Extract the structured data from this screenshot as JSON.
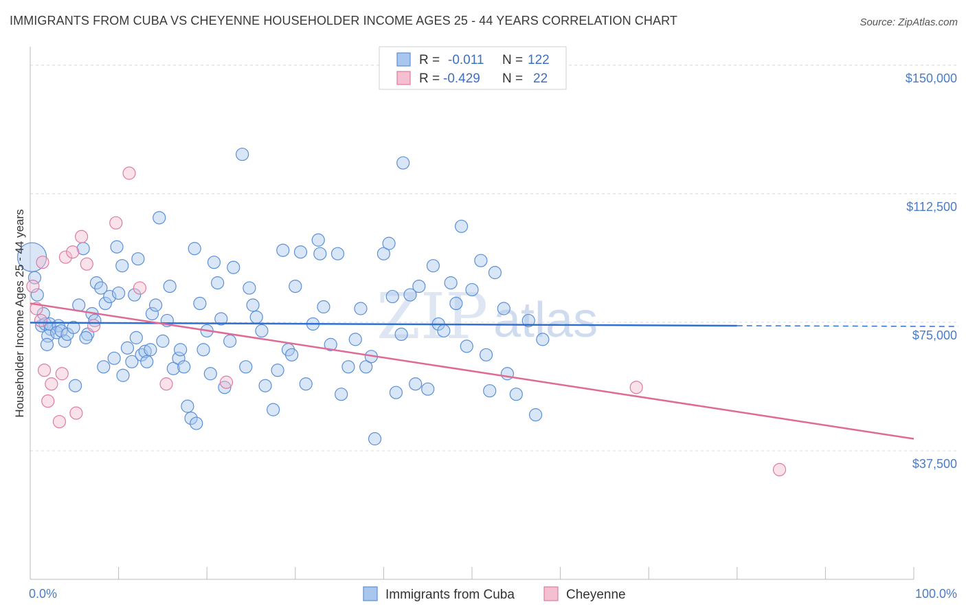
{
  "title": "IMMIGRANTS FROM CUBA VS CHEYENNE HOUSEHOLDER INCOME AGES 25 - 44 YEARS CORRELATION CHART",
  "source": "Source: ZipAtlas.com",
  "watermark": {
    "zip": "ZIP",
    "atlas": "atlas"
  },
  "colors": {
    "cuba": "#5b8fd6",
    "cuba_fill": "#a9c7ee",
    "cheyenne": "#e07aa0",
    "cheyenne_fill": "#f4bfd1",
    "grid": "#d8d8d8",
    "axis_label": "#4a7cc4"
  },
  "legend_top": {
    "rows": [
      {
        "r_label": "R = ",
        "r_value": "-0.011",
        "n_label": "N = ",
        "n_value": "122"
      },
      {
        "r_label": "R = ",
        "r_value": "-0.429",
        "n_label": "N = ",
        "n_value": "22"
      }
    ]
  },
  "legend_bottom": [
    "Immigrants from Cuba",
    "Cheyenne"
  ],
  "chart_data": {
    "type": "scatter",
    "ylabel": "Householder Income Ages 25 - 44 years",
    "xlabel": "",
    "xlim": [
      0,
      100
    ],
    "ylim": [
      0,
      157000
    ],
    "x_tick_labels": [
      "0.0%",
      "100.0%"
    ],
    "y_ticks": [
      37500,
      75000,
      112500,
      150000
    ],
    "y_tick_labels": [
      "$37,500",
      "$75,000",
      "$112,500",
      "$150,000"
    ],
    "grid": true,
    "legend": "top-center",
    "series": [
      {
        "name": "Immigrants from Cuba",
        "trend": {
          "x0": 0,
          "y0": 74900,
          "x1": 80,
          "y1": 74000,
          "dash_to": 100
        },
        "points": [
          [
            0.2,
            94000
          ],
          [
            0.5,
            88000
          ],
          [
            0.8,
            83000
          ],
          [
            1.5,
            77500
          ],
          [
            1.3,
            74000
          ],
          [
            1.7,
            74500
          ],
          [
            2.3,
            73000
          ],
          [
            2.0,
            71000
          ],
          [
            1.9,
            68500
          ],
          [
            2.2,
            74500
          ],
          [
            3.2,
            74000
          ],
          [
            3.0,
            72000
          ],
          [
            3.5,
            72500
          ],
          [
            3.9,
            69500
          ],
          [
            4.2,
            71500
          ],
          [
            4.9,
            73500
          ],
          [
            5.1,
            56500
          ],
          [
            5.5,
            80000
          ],
          [
            6.0,
            96500
          ],
          [
            6.5,
            71500
          ],
          [
            6.3,
            70500
          ],
          [
            7.0,
            77500
          ],
          [
            7.5,
            86500
          ],
          [
            7.3,
            75500
          ],
          [
            8.0,
            85000
          ],
          [
            8.5,
            80500
          ],
          [
            8.3,
            62000
          ],
          [
            9.0,
            82500
          ],
          [
            9.5,
            64500
          ],
          [
            9.8,
            97000
          ],
          [
            10.0,
            83500
          ],
          [
            10.5,
            59500
          ],
          [
            10.4,
            91500
          ],
          [
            11.0,
            67500
          ],
          [
            11.5,
            63500
          ],
          [
            11.8,
            83000
          ],
          [
            12.0,
            70500
          ],
          [
            12.2,
            93500
          ],
          [
            12.6,
            65500
          ],
          [
            13.0,
            66500
          ],
          [
            13.2,
            63500
          ],
          [
            13.6,
            67000
          ],
          [
            13.8,
            77500
          ],
          [
            14.2,
            80000
          ],
          [
            14.6,
            105500
          ],
          [
            15.0,
            69500
          ],
          [
            15.5,
            75500
          ],
          [
            15.8,
            85500
          ],
          [
            16.2,
            61500
          ],
          [
            16.8,
            64500
          ],
          [
            17.0,
            67000
          ],
          [
            17.4,
            62000
          ],
          [
            17.8,
            50500
          ],
          [
            18.2,
            47000
          ],
          [
            18.6,
            96500
          ],
          [
            18.8,
            45500
          ],
          [
            19.2,
            80500
          ],
          [
            19.6,
            67000
          ],
          [
            20.0,
            72500
          ],
          [
            20.4,
            60000
          ],
          [
            20.8,
            92500
          ],
          [
            21.2,
            86500
          ],
          [
            21.6,
            76000
          ],
          [
            22.0,
            56000
          ],
          [
            22.6,
            69500
          ],
          [
            23.0,
            91000
          ],
          [
            24.0,
            124000
          ],
          [
            24.4,
            62000
          ],
          [
            24.8,
            85000
          ],
          [
            25.2,
            80000
          ],
          [
            25.6,
            76500
          ],
          [
            26.2,
            72500
          ],
          [
            26.6,
            56500
          ],
          [
            27.5,
            49500
          ],
          [
            28.0,
            61000
          ],
          [
            28.6,
            96000
          ],
          [
            29.2,
            67000
          ],
          [
            29.6,
            65500
          ],
          [
            30.0,
            85500
          ],
          [
            30.6,
            95500
          ],
          [
            31.2,
            57000
          ],
          [
            32.0,
            74500
          ],
          [
            32.6,
            99000
          ],
          [
            32.8,
            95000
          ],
          [
            33.2,
            79500
          ],
          [
            34.0,
            68500
          ],
          [
            34.8,
            95000
          ],
          [
            35.2,
            54000
          ],
          [
            36.0,
            62000
          ],
          [
            36.8,
            70000
          ],
          [
            37.4,
            79000
          ],
          [
            38.0,
            62000
          ],
          [
            38.6,
            65000
          ],
          [
            39.0,
            41000
          ],
          [
            40.0,
            95000
          ],
          [
            40.6,
            98000
          ],
          [
            41.0,
            82500
          ],
          [
            41.4,
            54500
          ],
          [
            42.0,
            71500
          ],
          [
            42.2,
            121500
          ],
          [
            43.0,
            83000
          ],
          [
            43.6,
            57000
          ],
          [
            44.0,
            85500
          ],
          [
            45.0,
            55500
          ],
          [
            45.6,
            91500
          ],
          [
            46.2,
            74500
          ],
          [
            46.8,
            72500
          ],
          [
            47.6,
            86500
          ],
          [
            48.2,
            80500
          ],
          [
            48.8,
            103000
          ],
          [
            49.4,
            68000
          ],
          [
            50.0,
            84500
          ],
          [
            51.0,
            93000
          ],
          [
            51.6,
            65500
          ],
          [
            52.0,
            55000
          ],
          [
            52.6,
            89500
          ],
          [
            53.6,
            79000
          ],
          [
            54.0,
            60000
          ],
          [
            55.0,
            54000
          ],
          [
            56.4,
            75500
          ],
          [
            57.2,
            48000
          ],
          [
            58.0,
            70000
          ]
        ]
      },
      {
        "name": "Cheyenne",
        "trend": {
          "x0": 0,
          "y0": 80500,
          "x1": 100,
          "y1": 41000
        },
        "points": [
          [
            0.3,
            85500
          ],
          [
            0.7,
            79000
          ],
          [
            1.4,
            92500
          ],
          [
            1.2,
            75500
          ],
          [
            1.6,
            61000
          ],
          [
            2.0,
            52000
          ],
          [
            2.4,
            57000
          ],
          [
            3.3,
            46000
          ],
          [
            3.6,
            60000
          ],
          [
            4.0,
            94000
          ],
          [
            4.8,
            95500
          ],
          [
            5.2,
            48500
          ],
          [
            5.8,
            100000
          ],
          [
            6.4,
            92000
          ],
          [
            7.2,
            74000
          ],
          [
            9.7,
            104000
          ],
          [
            11.2,
            118500
          ],
          [
            12.4,
            85000
          ],
          [
            15.4,
            57000
          ],
          [
            22.2,
            57500
          ],
          [
            68.6,
            56000
          ],
          [
            84.8,
            32000
          ]
        ]
      }
    ]
  }
}
